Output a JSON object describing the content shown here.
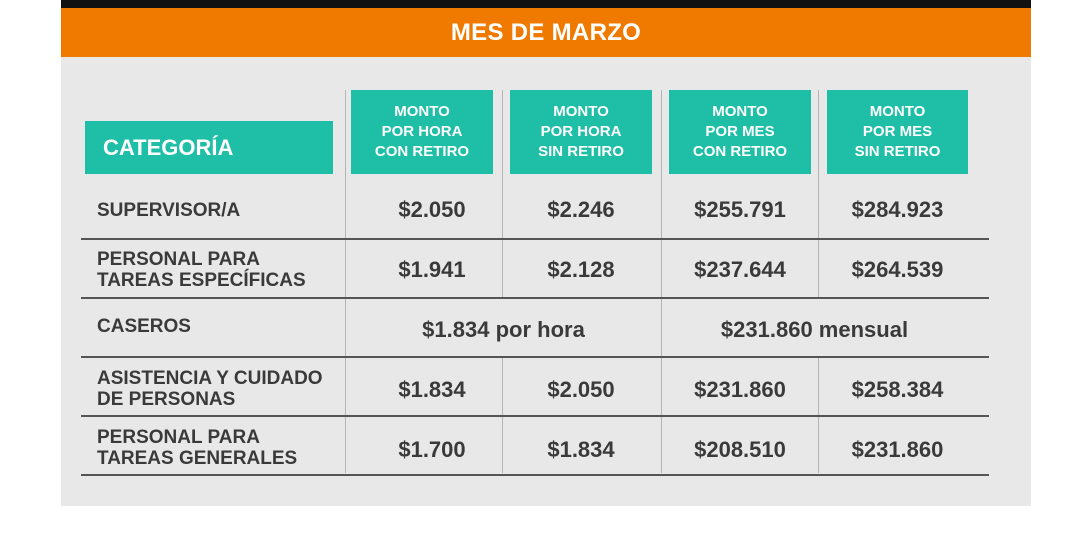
{
  "title": "MES DE MARZO",
  "columns": {
    "category": "CATEGORÍA",
    "hour_with": "MONTO\nPOR HORA\nCON RETIRO",
    "hour_without": "MONTO\nPOR HORA\nSIN RETIRO",
    "month_with": "MONTO\nPOR MES\nCON RETIRO",
    "month_without": "MONTO\nPOR MES\nSIN RETIRO"
  },
  "rows": [
    {
      "category": "SUPERVISOR/A",
      "values": [
        "$2.050",
        "$2.246",
        "$255.791",
        "$284.923"
      ]
    },
    {
      "category": "PERSONAL PARA\nTAREAS ESPECÍFICAS",
      "values": [
        "$1.941",
        "$2.128",
        "$237.644",
        "$264.539"
      ]
    },
    {
      "category": "CASEROS",
      "merged_hour": "$1.834 por hora",
      "merged_month": "$231.860 mensual"
    },
    {
      "category": "ASISTENCIA Y CUIDADO\nDE PERSONAS",
      "values": [
        "$1.834",
        "$2.050",
        "$231.860",
        "$258.384"
      ]
    },
    {
      "category": "PERSONAL PARA\nTAREAS GENERALES",
      "values": [
        "$1.700",
        "$1.834",
        "$208.510",
        "$231.860"
      ]
    }
  ],
  "colors": {
    "title_bar": "#f07a00",
    "header_teal": "#1fbea6",
    "card_bg": "#e8e8e8",
    "text": "#3a3a3a"
  }
}
